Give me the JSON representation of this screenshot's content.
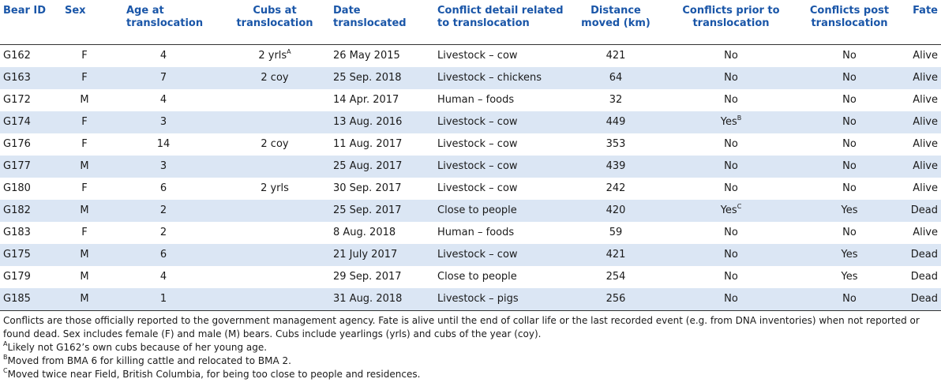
{
  "columns": [
    "Bear ID",
    "Sex",
    "Age at translocation",
    "Cubs at translocation",
    "Date translocated",
    "Conflict detail related to translocation",
    "Distance moved (km)",
    "Conflicts prior to translocation",
    "Conflicts post translocation",
    "Fate"
  ],
  "rows": [
    {
      "id": "G162",
      "sex": "F",
      "age": "4",
      "cubs": "2 yrls",
      "cubs_sup": "A",
      "date": "26 May 2015",
      "conflict": "Livestock – cow",
      "distance": "421",
      "prior": "No",
      "prior_sup": "",
      "post": "No",
      "fate": "Alive"
    },
    {
      "id": "G163",
      "sex": "F",
      "age": "7",
      "cubs": "2 coy",
      "cubs_sup": "",
      "date": "25 Sep. 2018",
      "conflict": "Livestock – chickens",
      "distance": "64",
      "prior": "No",
      "prior_sup": "",
      "post": "No",
      "fate": "Alive"
    },
    {
      "id": "G172",
      "sex": "M",
      "age": "4",
      "cubs": "",
      "cubs_sup": "",
      "date": "14 Apr. 2017",
      "conflict": "Human – foods",
      "distance": "32",
      "prior": "No",
      "prior_sup": "",
      "post": "No",
      "fate": "Alive"
    },
    {
      "id": "G174",
      "sex": "F",
      "age": "3",
      "cubs": "",
      "cubs_sup": "",
      "date": "13 Aug. 2016",
      "conflict": "Livestock – cow",
      "distance": "449",
      "prior": "Yes",
      "prior_sup": "B",
      "post": "No",
      "fate": "Alive"
    },
    {
      "id": "G176",
      "sex": "F",
      "age": "14",
      "cubs": "2 coy",
      "cubs_sup": "",
      "date": "11 Aug. 2017",
      "conflict": "Livestock – cow",
      "distance": "353",
      "prior": "No",
      "prior_sup": "",
      "post": "No",
      "fate": "Alive"
    },
    {
      "id": "G177",
      "sex": "M",
      "age": "3",
      "cubs": "",
      "cubs_sup": "",
      "date": "25 Aug. 2017",
      "conflict": "Livestock – cow",
      "distance": "439",
      "prior": "No",
      "prior_sup": "",
      "post": "No",
      "fate": "Alive"
    },
    {
      "id": "G180",
      "sex": "F",
      "age": "6",
      "cubs": "2 yrls",
      "cubs_sup": "",
      "date": "30 Sep. 2017",
      "conflict": "Livestock – cow",
      "distance": "242",
      "prior": "No",
      "prior_sup": "",
      "post": "No",
      "fate": "Alive"
    },
    {
      "id": "G182",
      "sex": "M",
      "age": "2",
      "cubs": "",
      "cubs_sup": "",
      "date": "25 Sep. 2017",
      "conflict": "Close to people",
      "distance": "420",
      "prior": "Yes",
      "prior_sup": "C",
      "post": "Yes",
      "fate": "Dead"
    },
    {
      "id": "G183",
      "sex": "F",
      "age": "2",
      "cubs": "",
      "cubs_sup": "",
      "date": "8 Aug. 2018",
      "conflict": "Human – foods",
      "distance": "59",
      "prior": "No",
      "prior_sup": "",
      "post": "No",
      "fate": "Alive"
    },
    {
      "id": "G175",
      "sex": "M",
      "age": "6",
      "cubs": "",
      "cubs_sup": "",
      "date": "21 July 2017",
      "conflict": "Livestock – cow",
      "distance": "421",
      "prior": "No",
      "prior_sup": "",
      "post": "Yes",
      "fate": "Dead"
    },
    {
      "id": "G179",
      "sex": "M",
      "age": "4",
      "cubs": "",
      "cubs_sup": "",
      "date": "29 Sep. 2017",
      "conflict": "Close to people",
      "distance": "254",
      "prior": "No",
      "prior_sup": "",
      "post": "Yes",
      "fate": "Dead"
    },
    {
      "id": "G185",
      "sex": "M",
      "age": "1",
      "cubs": "",
      "cubs_sup": "",
      "date": "31 Aug. 2018",
      "conflict": "Livestock – pigs",
      "distance": "256",
      "prior": "No",
      "prior_sup": "",
      "post": "No",
      "fate": "Dead"
    }
  ],
  "notes": {
    "general": "Conflicts are those officially reported to the government management agency. Fate is alive until the end of collar life or the last recorded event (e.g. from DNA inventories) when not reported or found dead. Sex includes female (F) and male (M) bears. Cubs include yearlings (yrls) and cubs of the year (coy).",
    "footnotes": [
      {
        "mark": "A",
        "text": "Likely not G162’s own cubs because of her young age."
      },
      {
        "mark": "B",
        "text": "Moved from BMA 6 for killing cattle and relocated to BMA 2."
      },
      {
        "mark": "C",
        "text": "Moved twice near Field, British Columbia, for being too close to people and residences."
      }
    ]
  },
  "colors": {
    "header_text": "#1a56a8",
    "row_shade": "#dbe6f4",
    "rule": "#333333"
  }
}
